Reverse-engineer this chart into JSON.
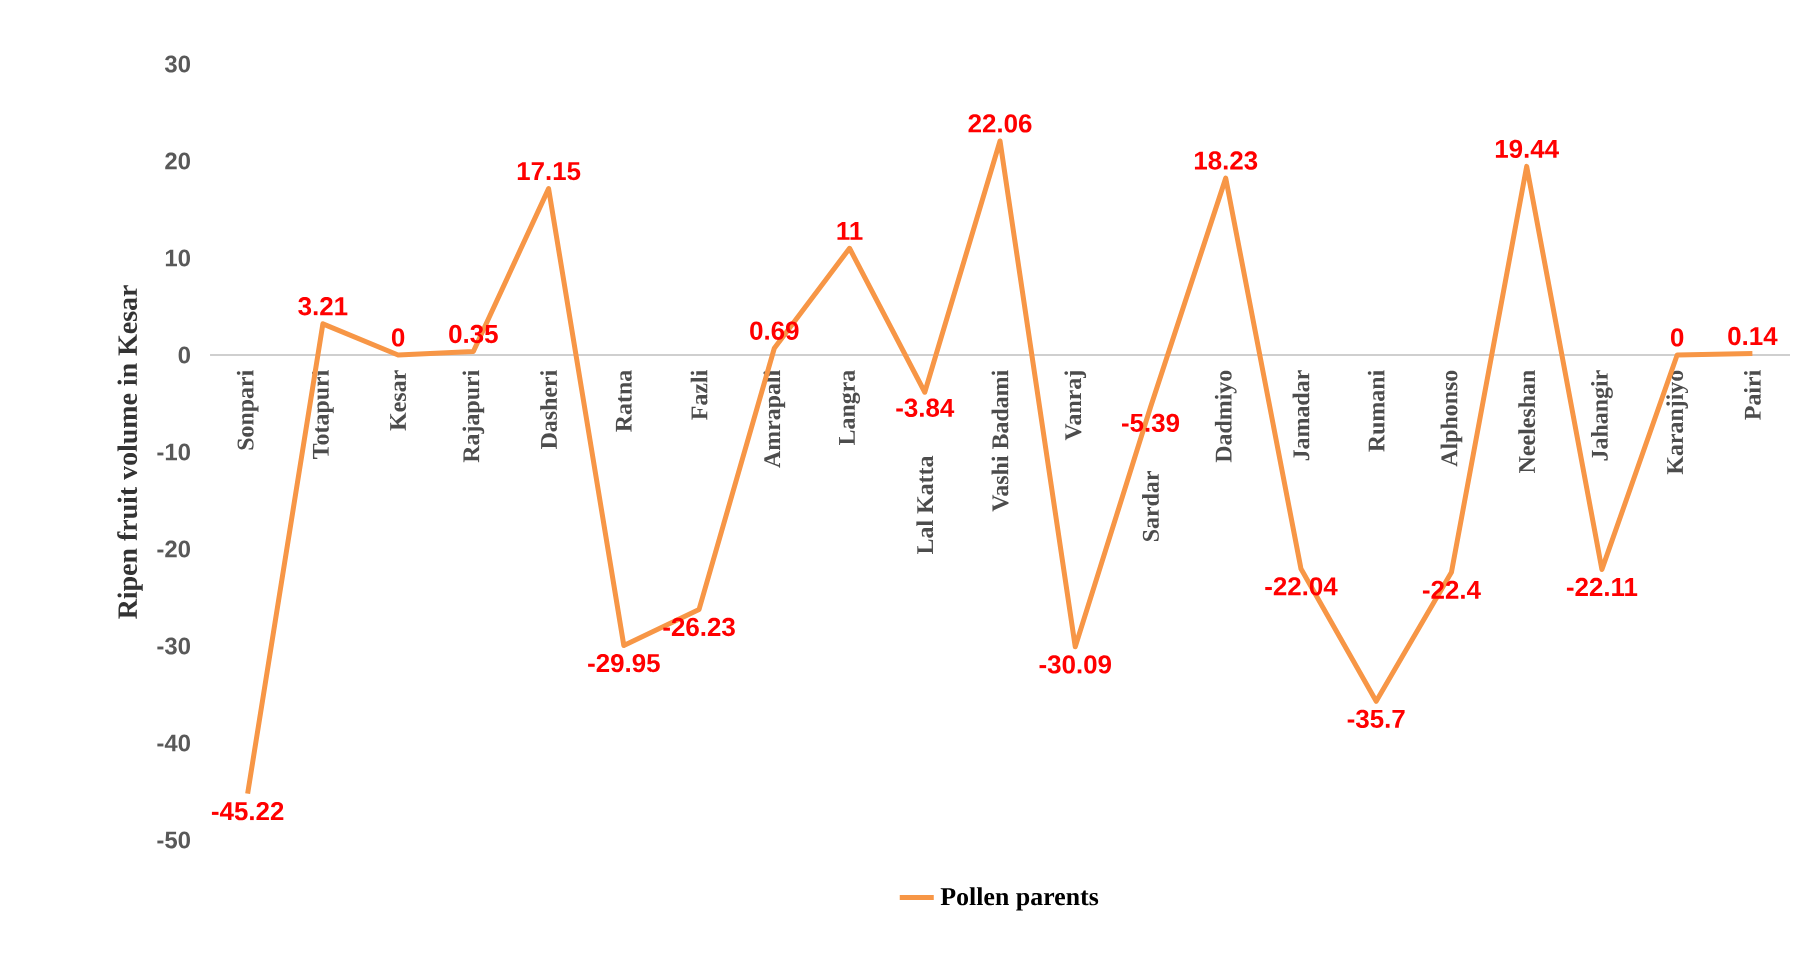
{
  "chart_data": {
    "type": "line",
    "ylabel": "Ripen fruit volume in Kesar",
    "categories": [
      "Sonpari",
      "Totapuri",
      "Kesar",
      "Rajapuri",
      "Dasheri",
      "Ratna",
      "Fazli",
      "Amrapali",
      "Langra",
      "Lal Katta",
      "Vashi Badami",
      "Vanraj",
      "Sardar",
      "Dadmiyo",
      "Jamadar",
      "Rumani",
      "Alphonso",
      "Neeleshan",
      "Jahangir",
      "Karanjiyo",
      "Pairi"
    ],
    "series": [
      {
        "name": "Pollen parents",
        "color": "#f79646",
        "values": [
          -45.22,
          3.21,
          0,
          0.35,
          17.15,
          -29.95,
          -26.23,
          0.69,
          11,
          -3.84,
          22.06,
          -30.09,
          -5.39,
          18.23,
          -22.04,
          -35.7,
          -22.4,
          19.44,
          -22.11,
          0,
          0.14
        ],
        "value_labels": [
          "-45.22",
          "3.21",
          "0",
          "0.35",
          "17.15",
          "-29.95",
          "-26.23",
          "0.69",
          "11",
          "-3.84",
          "22.06",
          "-30.09",
          "-5.39",
          "18.23",
          "-22.04",
          "-35.7",
          "-22.4",
          "19.44",
          "-22.11",
          "0",
          "0.14"
        ]
      }
    ],
    "ylim": [
      -50,
      30
    ],
    "yticks": [
      -50,
      -40,
      -30,
      -20,
      -10,
      0,
      10,
      20,
      30
    ],
    "legend": "bottom",
    "marker": "none",
    "line_style": "solid",
    "grid": false
  }
}
